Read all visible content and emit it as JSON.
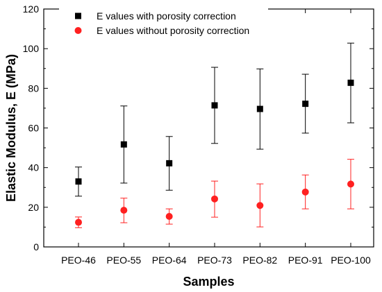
{
  "chart_data": {
    "type": "scatter",
    "title": "",
    "xlabel": "Samples",
    "ylabel": "Elastic Modulus, E (MPa)",
    "categories": [
      "PEO-46",
      "PEO-55",
      "PEO-64",
      "PEO-73",
      "PEO-82",
      "PEO-91",
      "PEO-100"
    ],
    "ylim": [
      0,
      120
    ],
    "yticks": [
      0,
      20,
      40,
      60,
      80,
      100,
      120
    ],
    "grid": false,
    "legend_position": "top-left",
    "series": [
      {
        "name": "E values with porosity correction",
        "marker": "square",
        "color": "#000000",
        "values": [
          33,
          51.7,
          42.2,
          71.4,
          69.6,
          72.2,
          82.8
        ],
        "err_low": [
          25.6,
          32.2,
          28.6,
          52.2,
          49.3,
          57.4,
          62.6
        ],
        "err_high": [
          40.3,
          71.1,
          55.7,
          90.6,
          89.8,
          87.1,
          102.8
        ]
      },
      {
        "name": "E values without porosity correction",
        "marker": "circle",
        "color": "#ff2020",
        "values": [
          12.4,
          18.5,
          15.4,
          24.2,
          20.9,
          27.7,
          31.7
        ],
        "err_low": [
          9.7,
          12.2,
          11.5,
          15.0,
          10.1,
          19.2,
          19.2
        ],
        "err_high": [
          15.1,
          24.6,
          19.2,
          33.2,
          31.8,
          36.3,
          44.2
        ]
      }
    ]
  }
}
